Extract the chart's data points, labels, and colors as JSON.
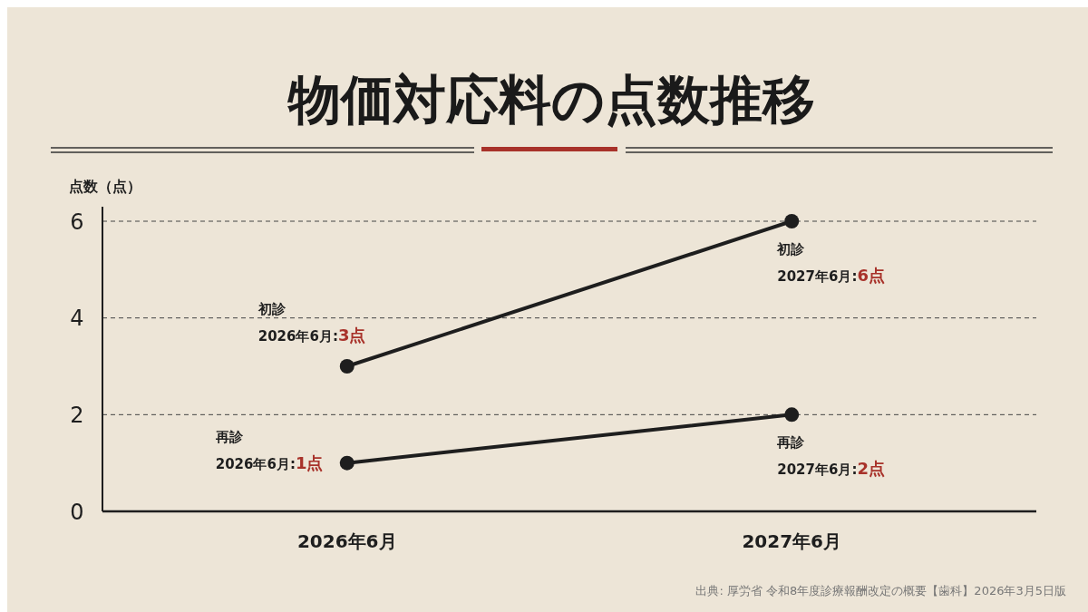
{
  "chart_data": {
    "type": "line",
    "title": "物価対応料の点数推移",
    "ylabel": "点数（点）",
    "categories": [
      "2026年6月",
      "2027年6月"
    ],
    "series": [
      {
        "name": "初診",
        "color": "#1e1e1e",
        "values": [
          3,
          6
        ],
        "value_labels": [
          "2026年6月:3点",
          "2027年6月:6点"
        ]
      },
      {
        "name": "再診",
        "color": "#1e1e1e",
        "values": [
          1,
          2
        ],
        "value_labels": [
          "2026年6月:1点",
          "2027年6月:2点"
        ]
      }
    ],
    "ylim": [
      0,
      6.3
    ],
    "yticks": [
      0,
      2,
      4,
      6
    ],
    "grid": "y",
    "marker": "circle",
    "line_style": "solid",
    "annotations": [
      "出典: 厚労省 令和8年度診療報酬改定の概要【歯科】2026年3月5日版"
    ]
  }
}
